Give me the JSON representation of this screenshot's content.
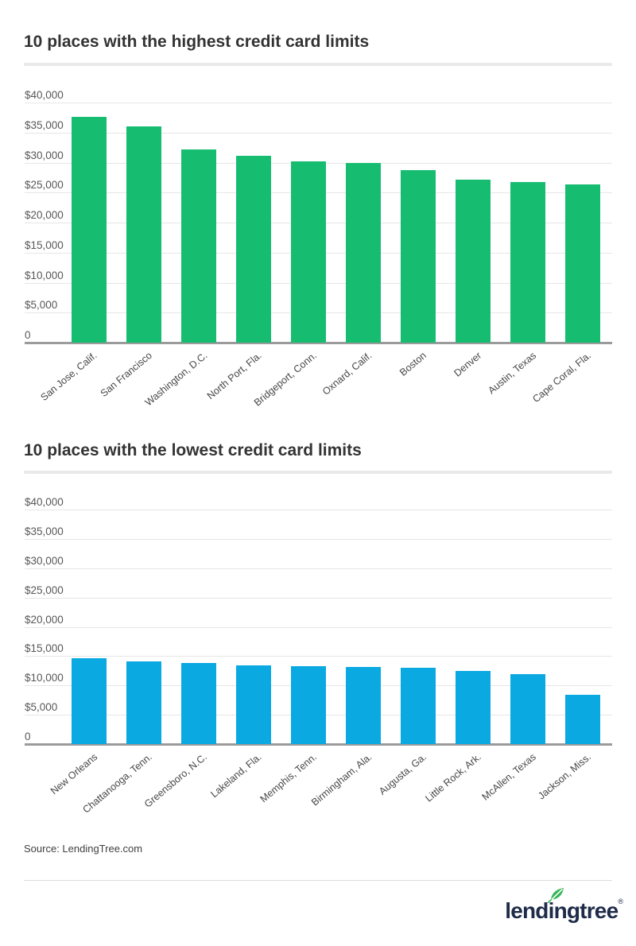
{
  "page": {
    "background": "#ffffff"
  },
  "chart_data": [
    {
      "type": "bar",
      "title": "10 places with the highest credit card limits",
      "categories": [
        "San Jose, Calif.",
        "San Francisco",
        "Washington, D.C.",
        "North Port, Fla.",
        "Bridgeport, Conn.",
        "Oxnard, Calif.",
        "Boston",
        "Denver",
        "Austin, Texas",
        "Cape Coral, Fla."
      ],
      "values": [
        37600,
        36000,
        32200,
        31100,
        30200,
        30000,
        28800,
        27100,
        26800,
        26300
      ],
      "bar_color": "#16bd71",
      "ylim": [
        0,
        40000
      ],
      "y_tick_step": 5000,
      "y_tick_labels": [
        "$40,000",
        "$35,000",
        "$30,000",
        "$25,000",
        "$20,000",
        "$15,000",
        "$10,000",
        "$5,000",
        "0"
      ],
      "grid": true,
      "legend": "none",
      "xlabel": "",
      "ylabel": ""
    },
    {
      "type": "bar",
      "title": "10 places with the lowest credit card limits",
      "categories": [
        "New Orleans",
        "Chattanooga, Tenn.",
        "Greensboro, N.C.",
        "Lakeland, Fla.",
        "Memphis, Tenn.",
        "Birmingham, Ala.",
        "Augusta, Ga.",
        "Little Rock, Ark.",
        "McAllen, Texas",
        "Jackson, Miss."
      ],
      "values": [
        14700,
        14100,
        13800,
        13400,
        13300,
        13200,
        13000,
        12500,
        12000,
        8400
      ],
      "bar_color": "#0aa9e2",
      "ylim": [
        0,
        40000
      ],
      "y_tick_step": 5000,
      "y_tick_labels": [
        "$40,000",
        "$35,000",
        "$30,000",
        "$25,000",
        "$20,000",
        "$15,000",
        "$10,000",
        "$5,000",
        "0"
      ],
      "grid": true,
      "legend": "none",
      "xlabel": "",
      "ylabel": ""
    }
  ],
  "footer": {
    "source": "Source: LendingTree.com",
    "logo_text": "lendingtree",
    "logo_registered": "®"
  },
  "colors": {
    "highest_bar": "#16bd71",
    "lowest_bar": "#0aa9e2",
    "title_text": "#333333",
    "axis_text": "#575757",
    "gridline": "#e6e6e6",
    "zero_line": "#9b9b9b",
    "logo_navy": "#1e2b49",
    "leaf_green": "#38b559"
  }
}
